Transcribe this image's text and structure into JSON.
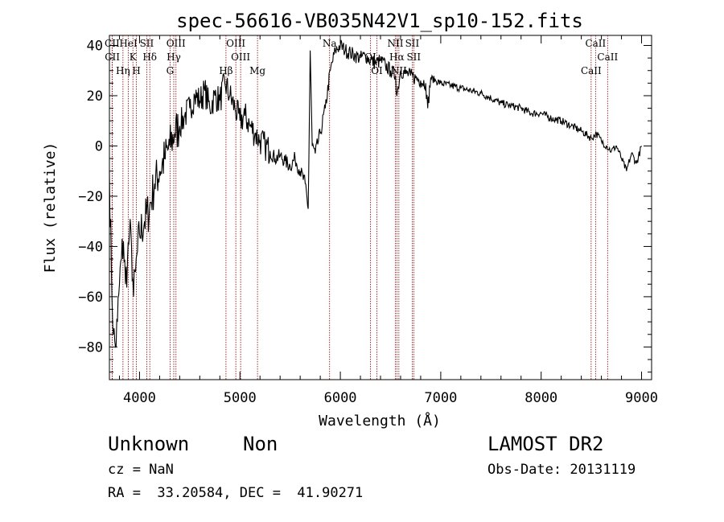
{
  "chart_data": {
    "type": "line",
    "title": "spec-56616-VB035N42V1_sp10-152.fits",
    "xlabel": "Wavelength (Å)",
    "ylabel": "Flux (relative)",
    "xlim": [
      3700,
      9100
    ],
    "ylim": [
      -93,
      44
    ],
    "xticks": [
      4000,
      5000,
      6000,
      7000,
      8000,
      9000
    ],
    "yticks": [
      -80,
      -60,
      -40,
      -20,
      0,
      20,
      40
    ],
    "grid": false,
    "line_color": "#000000",
    "marker_color": "#8b0000",
    "series": [
      {
        "x": [
          3700,
          3720,
          3740,
          3760,
          3780,
          3800,
          3820,
          3840,
          3860,
          3880,
          3900,
          3920,
          3940,
          3960,
          3980,
          4000,
          4050,
          4100,
          4150,
          4200,
          4250,
          4300,
          4350,
          4400,
          4450,
          4500,
          4550,
          4600,
          4650,
          4700,
          4750,
          4800,
          4850,
          4900,
          4950,
          5000,
          5050,
          5100,
          5150,
          5200,
          5250,
          5300,
          5350,
          5400,
          5450,
          5500,
          5550,
          5600,
          5650,
          5680,
          5700,
          5720,
          5750,
          5800,
          5850,
          5900,
          5950,
          6000,
          6050,
          6100,
          6150,
          6200,
          6250,
          6300,
          6350,
          6400,
          6450,
          6500,
          6550,
          6563,
          6600,
          6650,
          6700,
          6750,
          6800,
          6850,
          6870,
          6900,
          6950,
          7000,
          7100,
          7200,
          7300,
          7400,
          7500,
          7600,
          7700,
          7800,
          7900,
          8000,
          8100,
          8200,
          8300,
          8400,
          8500,
          8550,
          8600,
          8650,
          8700,
          8750,
          8800,
          8850,
          8900,
          8950,
          9000
        ],
        "y": [
          -10,
          -50,
          -75,
          -80,
          -70,
          -55,
          -45,
          -38,
          -55,
          -45,
          -35,
          -40,
          -60,
          -50,
          -42,
          -35,
          -30,
          -25,
          -15,
          -10,
          -5,
          0,
          5,
          8,
          12,
          15,
          20,
          18,
          22,
          15,
          20,
          18,
          25,
          20,
          15,
          10,
          12,
          8,
          5,
          2,
          0,
          -2,
          -5,
          -4,
          -6,
          -8,
          -5,
          -10,
          -15,
          -25,
          38,
          0,
          -3,
          5,
          15,
          30,
          38,
          40,
          38,
          37,
          36,
          35,
          36,
          34,
          33,
          34,
          32,
          30,
          28,
          20,
          30,
          29,
          28,
          27,
          26,
          25,
          15,
          27,
          26,
          25,
          24,
          23,
          22,
          21,
          19,
          17,
          16,
          15,
          13,
          13,
          11,
          10,
          8,
          6,
          3,
          5,
          2,
          0,
          -2,
          0,
          -5,
          -10,
          -3,
          -7,
          0
        ]
      }
    ],
    "line_markers": [
      {
        "label": "CII",
        "x": 3727
      },
      {
        "label": "CII",
        "x": 3729
      },
      {
        "label": "Hη",
        "x": 3835
      },
      {
        "label": "HeI",
        "x": 3889
      },
      {
        "label": "K",
        "x": 3934
      },
      {
        "label": "H",
        "x": 3969
      },
      {
        "label": "SII",
        "x": 4072
      },
      {
        "label": "Hδ",
        "x": 4102
      },
      {
        "label": "G",
        "x": 4304
      },
      {
        "label": "OIII",
        "x": 4363
      },
      {
        "label": "Hγ",
        "x": 4341
      },
      {
        "label": "Hβ",
        "x": 4861
      },
      {
        "label": "OIII",
        "x": 4959
      },
      {
        "label": "OIII",
        "x": 5007
      },
      {
        "label": "Mg",
        "x": 5175
      },
      {
        "label": "Na",
        "x": 5893
      },
      {
        "label": "OI",
        "x": 6300
      },
      {
        "label": "OI",
        "x": 6364
      },
      {
        "label": "NII",
        "x": 6548
      },
      {
        "label": "Hα",
        "x": 6563
      },
      {
        "label": "NII",
        "x": 6583
      },
      {
        "label": "SII",
        "x": 6716
      },
      {
        "label": "SII",
        "x": 6731
      },
      {
        "label": "CaII",
        "x": 8498
      },
      {
        "label": "CaII",
        "x": 8542
      },
      {
        "label": "CaII",
        "x": 8662
      }
    ]
  },
  "footer": {
    "class_label": "Unknown",
    "subclass_label": "Non",
    "survey": "LAMOST DR2",
    "redshift": "cz = NaN",
    "obs_date": "Obs-Date: 20131119",
    "coords": "RA =  33.20584, DEC =  41.90271"
  }
}
